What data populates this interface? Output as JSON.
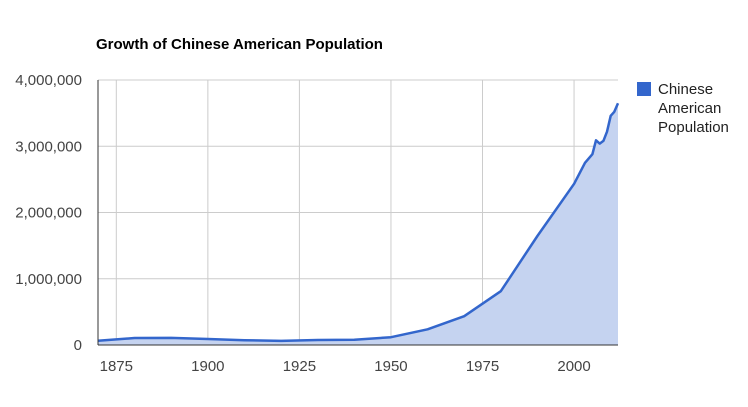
{
  "chart_data": {
    "type": "area",
    "title": "Growth of Chinese American Population",
    "xlabel": "",
    "ylabel": "",
    "xlim": [
      1870,
      2012
    ],
    "ylim": [
      0,
      4000000
    ],
    "x_ticks": [
      1875,
      1900,
      1925,
      1950,
      1975,
      2000
    ],
    "x_tick_labels": [
      "1875",
      "1900",
      "1925",
      "1950",
      "1975",
      "2000"
    ],
    "y_ticks": [
      0,
      1000000,
      2000000,
      3000000,
      4000000
    ],
    "y_tick_labels": [
      "0",
      "1,000,000",
      "2,000,000",
      "3,000,000",
      "4,000,000"
    ],
    "grid": true,
    "legend_position": "right",
    "colors": {
      "line": "#3366cc",
      "fill": "#c5d3f0",
      "grid": "#cccccc",
      "axis": "#333333"
    },
    "series": [
      {
        "name": "Chinese American Population",
        "x": [
          1870,
          1880,
          1890,
          1900,
          1910,
          1920,
          1930,
          1940,
          1950,
          1960,
          1970,
          1980,
          1990,
          2000,
          2003,
          2005,
          2006,
          2007,
          2008,
          2009,
          2010,
          2011,
          2012
        ],
        "y": [
          63000,
          105000,
          107000,
          90000,
          72000,
          62000,
          75000,
          78000,
          118000,
          237000,
          435000,
          812000,
          1645000,
          2433000,
          2750000,
          2880000,
          3090000,
          3040000,
          3080000,
          3220000,
          3460000,
          3520000,
          3650000
        ]
      }
    ]
  }
}
